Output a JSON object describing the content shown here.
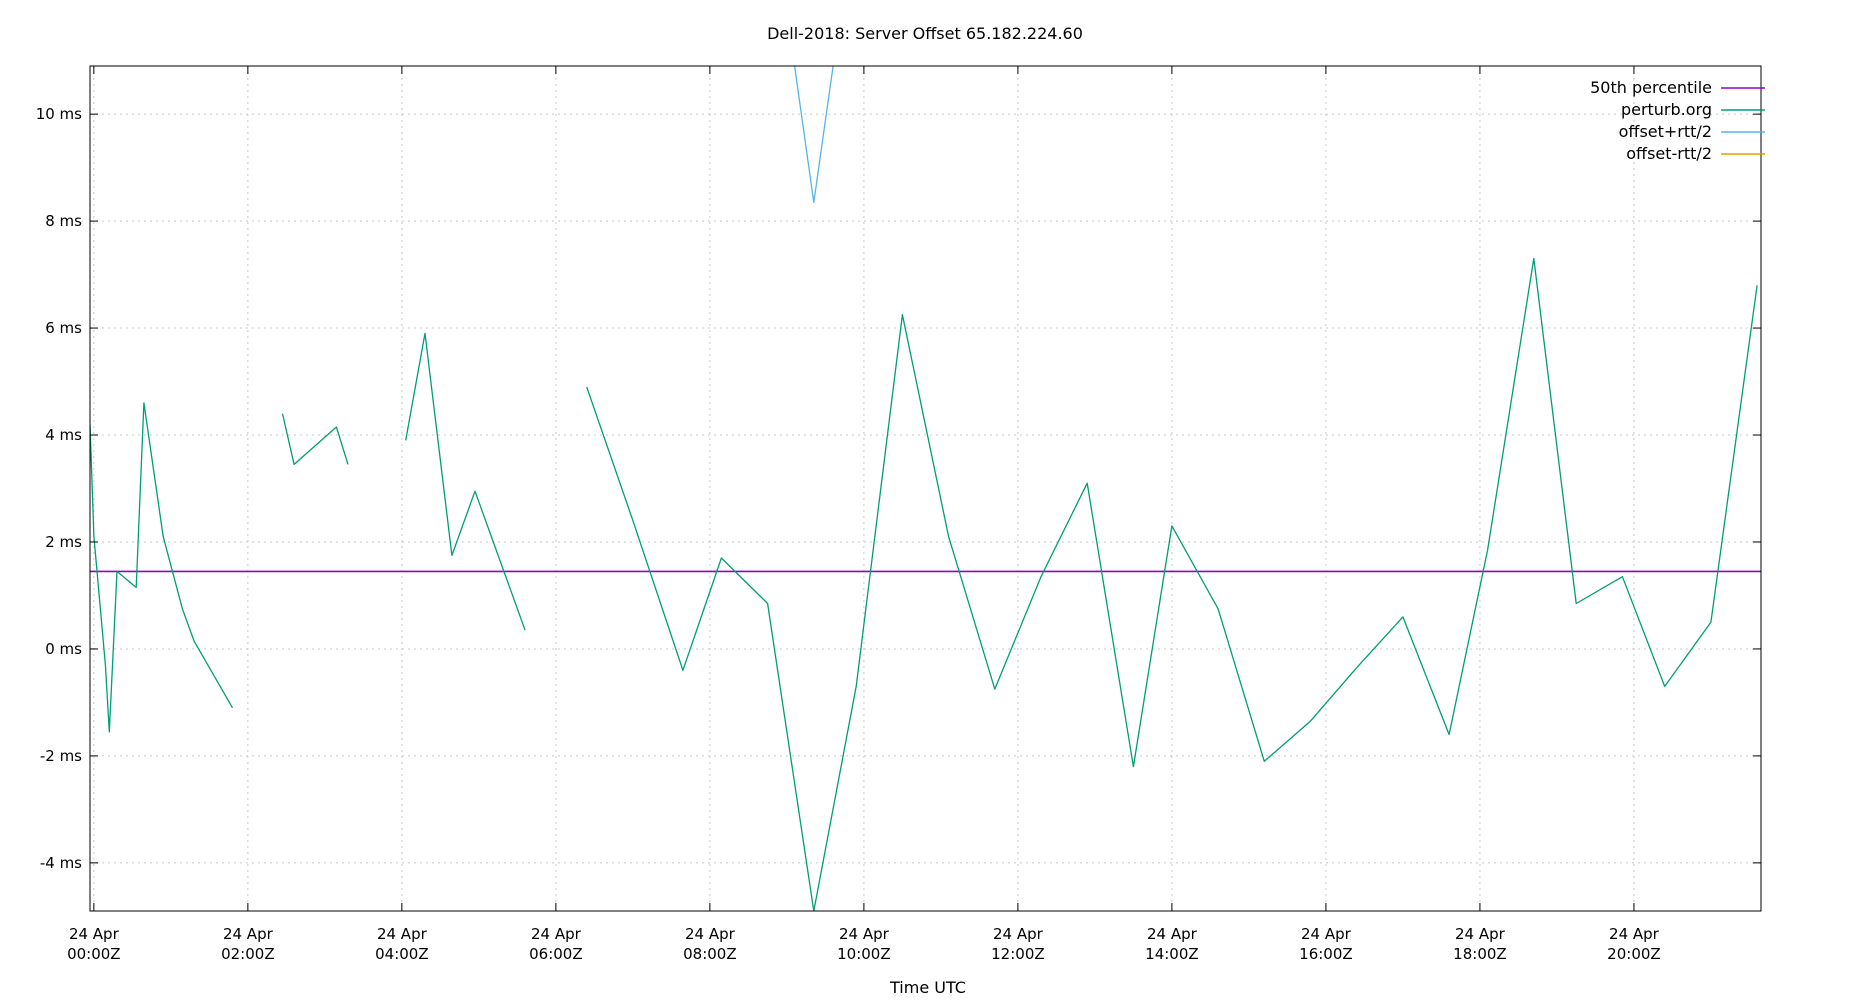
{
  "chart_data": {
    "type": "line",
    "title": "Dell-2018: Server Offset 65.182.224.60",
    "xlabel": "Time UTC",
    "ylabel": "",
    "x_unit": "hours since 24 Apr 00:00Z",
    "xlim": [
      -0.05,
      21.65
    ],
    "ylim": [
      -4.9,
      10.9
    ],
    "y_ticks": [
      {
        "value": 10,
        "label": "10 ms"
      },
      {
        "value": 8,
        "label": "8 ms"
      },
      {
        "value": 6,
        "label": "6 ms"
      },
      {
        "value": 4,
        "label": "4 ms"
      },
      {
        "value": 2,
        "label": "2 ms"
      },
      {
        "value": 0,
        "label": "0 ms"
      },
      {
        "value": -2,
        "label": "-2 ms"
      },
      {
        "value": -4,
        "label": "-4 ms"
      }
    ],
    "x_ticks": [
      {
        "value": 0,
        "date": "24 Apr",
        "time": "00:00Z"
      },
      {
        "value": 2,
        "date": "24 Apr",
        "time": "02:00Z"
      },
      {
        "value": 4,
        "date": "24 Apr",
        "time": "04:00Z"
      },
      {
        "value": 6,
        "date": "24 Apr",
        "time": "06:00Z"
      },
      {
        "value": 8,
        "date": "24 Apr",
        "time": "08:00Z"
      },
      {
        "value": 10,
        "date": "24 Apr",
        "time": "10:00Z"
      },
      {
        "value": 12,
        "date": "24 Apr",
        "time": "12:00Z"
      },
      {
        "value": 14,
        "date": "24 Apr",
        "time": "14:00Z"
      },
      {
        "value": 16,
        "date": "24 Apr",
        "time": "16:00Z"
      },
      {
        "value": 18,
        "date": "24 Apr",
        "time": "18:00Z"
      },
      {
        "value": 20,
        "date": "24 Apr",
        "time": "20:00Z"
      }
    ],
    "grid": true,
    "legend_position": "top-right",
    "series": [
      {
        "name": "50th percentile",
        "color": "#9400d3",
        "kind": "hline",
        "value": 1.45
      },
      {
        "name": "perturb.org",
        "color": "#009e73",
        "segments": [
          [
            [
              -0.05,
              4.2
            ],
            [
              0.0,
              2.1
            ],
            [
              0.15,
              -0.3
            ],
            [
              0.2,
              -1.55
            ],
            [
              0.3,
              1.45
            ],
            [
              0.55,
              1.15
            ],
            [
              0.65,
              4.6
            ],
            [
              0.9,
              2.1
            ],
            [
              1.15,
              0.75
            ],
            [
              1.3,
              0.15
            ],
            [
              1.8,
              -1.1
            ]
          ],
          [
            [
              2.45,
              4.4
            ],
            [
              2.6,
              3.45
            ],
            [
              3.15,
              4.15
            ],
            [
              3.3,
              3.45
            ]
          ],
          [
            [
              4.05,
              3.9
            ],
            [
              4.3,
              5.9
            ],
            [
              4.65,
              1.75
            ],
            [
              4.95,
              2.95
            ],
            [
              5.6,
              0.35
            ]
          ],
          [
            [
              6.4,
              4.9
            ],
            [
              7.0,
              2.4
            ],
            [
              7.65,
              -0.4
            ],
            [
              8.15,
              1.7
            ],
            [
              8.75,
              0.85
            ],
            [
              9.35,
              -4.9
            ],
            [
              9.9,
              -0.7
            ],
            [
              10.5,
              6.25
            ],
            [
              11.1,
              2.1
            ],
            [
              11.7,
              -0.75
            ],
            [
              12.3,
              1.35
            ],
            [
              12.9,
              3.1
            ],
            [
              13.5,
              -2.2
            ],
            [
              14.0,
              2.3
            ],
            [
              14.6,
              0.75
            ],
            [
              15.2,
              -2.1
            ],
            [
              15.8,
              -1.35
            ],
            [
              16.4,
              -0.35
            ],
            [
              17.0,
              0.6
            ],
            [
              17.6,
              -1.6
            ],
            [
              18.1,
              1.85
            ],
            [
              18.7,
              7.3
            ],
            [
              19.25,
              0.85
            ],
            [
              19.85,
              1.35
            ],
            [
              20.4,
              -0.7
            ],
            [
              21.0,
              0.5
            ],
            [
              21.6,
              6.8
            ]
          ]
        ]
      },
      {
        "name": "offset+rtt/2",
        "color": "#56b4e9",
        "segments": [
          [
            [
              9.1,
              10.9
            ],
            [
              9.35,
              8.35
            ],
            [
              9.6,
              10.9
            ]
          ]
        ]
      },
      {
        "name": "offset-rtt/2",
        "color": "#e69f00",
        "segments": []
      }
    ]
  }
}
